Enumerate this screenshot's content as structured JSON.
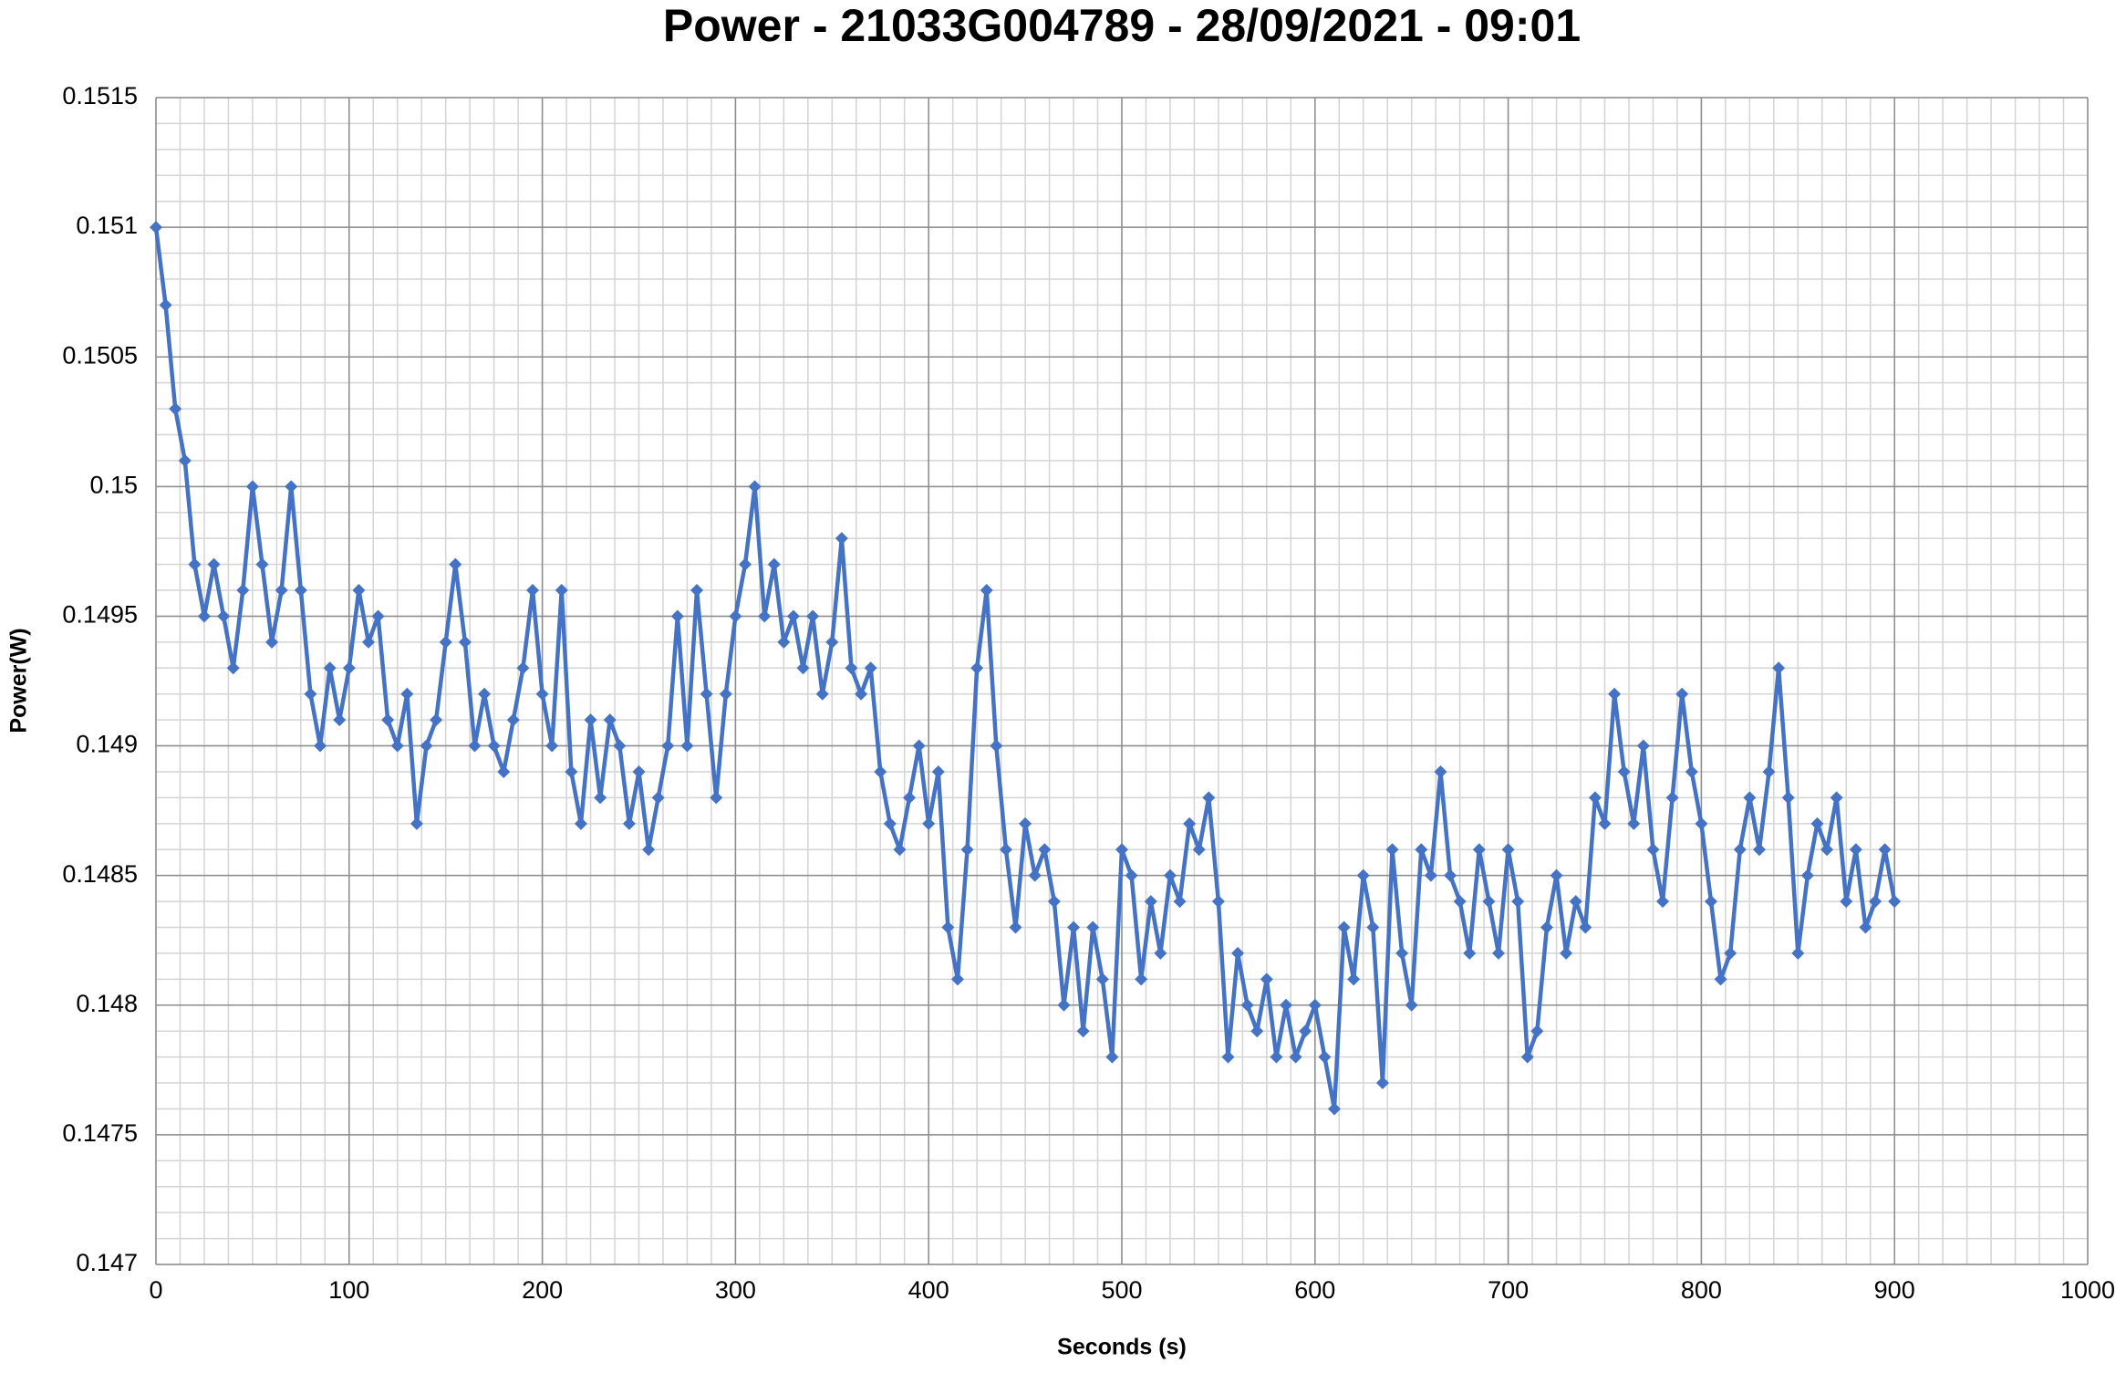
{
  "chart_data": {
    "type": "line",
    "title": "Power - 21033G004789 - 28/09/2021 - 09:01",
    "x_label": "Seconds (s)",
    "y_label": "Power(W)",
    "xlim": [
      0,
      1000
    ],
    "xticks": [
      0,
      100,
      200,
      300,
      400,
      500,
      600,
      700,
      800,
      900,
      1000
    ],
    "ylim": [
      0.147,
      0.1515
    ],
    "yticks": [
      0.147,
      0.1475,
      0.148,
      0.1485,
      0.149,
      0.1495,
      0.15,
      0.1505,
      0.151,
      0.1515
    ],
    "grid": true,
    "minor_xstep": 12.5,
    "minor_ystep": 0.0001,
    "x": [
      0,
      5,
      10,
      15,
      20,
      25,
      30,
      35,
      40,
      45,
      50,
      55,
      60,
      65,
      70,
      75,
      80,
      85,
      90,
      95,
      100,
      105,
      110,
      115,
      120,
      125,
      130,
      135,
      140,
      145,
      150,
      155,
      160,
      165,
      170,
      175,
      180,
      185,
      190,
      195,
      200,
      205,
      210,
      215,
      220,
      225,
      230,
      235,
      240,
      245,
      250,
      255,
      260,
      265,
      270,
      275,
      280,
      285,
      290,
      295,
      300,
      305,
      310,
      315,
      320,
      325,
      330,
      335,
      340,
      345,
      350,
      355,
      360,
      365,
      370,
      375,
      380,
      385,
      390,
      395,
      400,
      405,
      410,
      415,
      420,
      425,
      430,
      435,
      440,
      445,
      450,
      455,
      460,
      465,
      470,
      475,
      480,
      485,
      490,
      495,
      500,
      505,
      510,
      515,
      520,
      525,
      530,
      535,
      540,
      545,
      550,
      555,
      560,
      565,
      570,
      575,
      580,
      585,
      590,
      595,
      600,
      605,
      610,
      615,
      620,
      625,
      630,
      635,
      640,
      645,
      650,
      655,
      660,
      665,
      670,
      675,
      680,
      685,
      690,
      695,
      700,
      705,
      710,
      715,
      720,
      725,
      730,
      735,
      740,
      745,
      750,
      755,
      760,
      765,
      770,
      775,
      780,
      785,
      790,
      795,
      800,
      805,
      810,
      815,
      820,
      825,
      830,
      835,
      840,
      845,
      850,
      855,
      860,
      865,
      870,
      875,
      880,
      885,
      890,
      895,
      900
    ],
    "series": [
      {
        "name": "Power(W)",
        "color": "#4472c4",
        "values": [
          0.151,
          0.1507,
          0.1503,
          0.1501,
          0.1497,
          0.1495,
          0.1497,
          0.1495,
          0.1493,
          0.1496,
          0.15,
          0.1497,
          0.1494,
          0.1496,
          0.15,
          0.1496,
          0.1492,
          0.149,
          0.1493,
          0.1491,
          0.1493,
          0.1496,
          0.1494,
          0.1495,
          0.1491,
          0.149,
          0.1492,
          0.1487,
          0.149,
          0.1491,
          0.1494,
          0.1497,
          0.1494,
          0.149,
          0.1492,
          0.149,
          0.1489,
          0.1491,
          0.1493,
          0.1496,
          0.1492,
          0.149,
          0.1496,
          0.1489,
          0.1487,
          0.1491,
          0.1488,
          0.1491,
          0.149,
          0.1487,
          0.1489,
          0.1486,
          0.1488,
          0.149,
          0.1495,
          0.149,
          0.1496,
          0.1492,
          0.1488,
          0.1492,
          0.1495,
          0.1497,
          0.15,
          0.1495,
          0.1497,
          0.1494,
          0.1495,
          0.1493,
          0.1495,
          0.1492,
          0.1494,
          0.1498,
          0.1493,
          0.1492,
          0.1493,
          0.1489,
          0.1487,
          0.1486,
          0.1488,
          0.149,
          0.1487,
          0.1489,
          0.1483,
          0.1481,
          0.1486,
          0.1493,
          0.1496,
          0.149,
          0.1486,
          0.1483,
          0.1487,
          0.1485,
          0.1486,
          0.1484,
          0.148,
          0.1483,
          0.1479,
          0.1483,
          0.1481,
          0.1478,
          0.1486,
          0.1485,
          0.1481,
          0.1484,
          0.1482,
          0.1485,
          0.1484,
          0.1487,
          0.1486,
          0.1488,
          0.1484,
          0.1478,
          0.1482,
          0.148,
          0.1479,
          0.1481,
          0.1478,
          0.148,
          0.1478,
          0.1479,
          0.148,
          0.1478,
          0.1476,
          0.1483,
          0.1481,
          0.1485,
          0.1483,
          0.1477,
          0.1486,
          0.1482,
          0.148,
          0.1486,
          0.1485,
          0.1489,
          0.1485,
          0.1484,
          0.1482,
          0.1486,
          0.1484,
          0.1482,
          0.1486,
          0.1484,
          0.1478,
          0.1479,
          0.1483,
          0.1485,
          0.1482,
          0.1484,
          0.1483,
          0.1488,
          0.1487,
          0.1492,
          0.1489,
          0.1487,
          0.149,
          0.1486,
          0.1484,
          0.1488,
          0.1492,
          0.1489,
          0.1487,
          0.1484,
          0.1481,
          0.1482,
          0.1486,
          0.1488,
          0.1486,
          0.1489,
          0.1493,
          0.1488,
          0.1482,
          0.1485,
          0.1487,
          0.1486,
          0.1488,
          0.1484,
          0.1486,
          0.1483,
          0.1484,
          0.1486,
          0.1484
        ]
      }
    ]
  }
}
